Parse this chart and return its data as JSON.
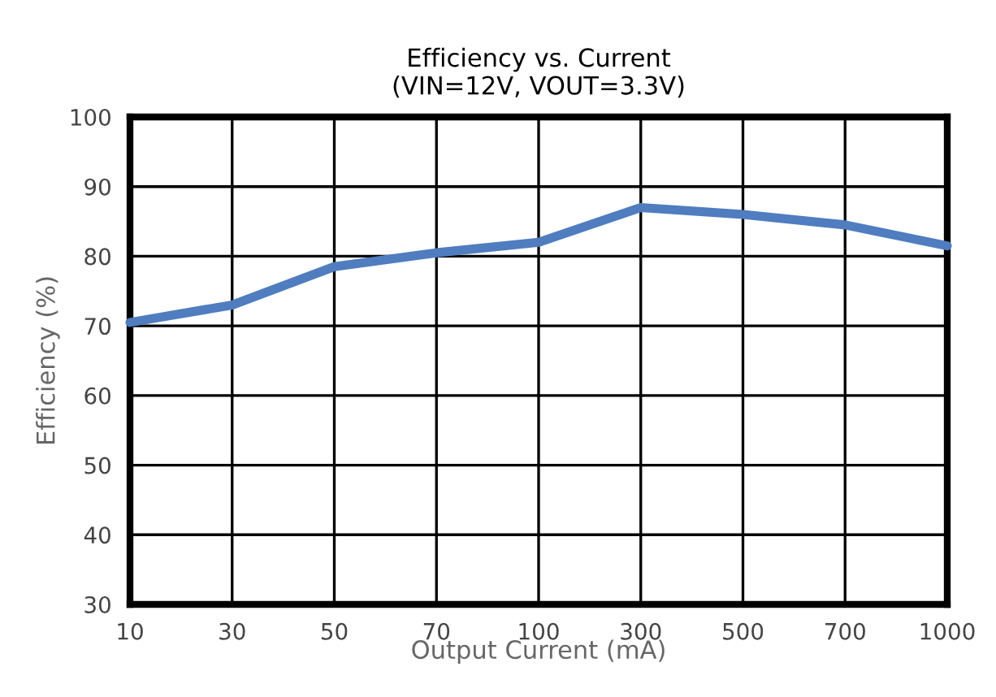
{
  "chart_data": {
    "type": "line",
    "title": "Efficiency vs. Current\n(VIN=12V, VOUT=3.3V)",
    "xlabel": "Output Current (mA)",
    "ylabel": "Efficiency (%)",
    "categories": [
      "10",
      "30",
      "50",
      "70",
      "100",
      "300",
      "500",
      "700",
      "1000"
    ],
    "series": [
      {
        "color": "#4f7dbf",
        "values": [
          70.5,
          73,
          78.5,
          80.5,
          82,
          87,
          86,
          84.5,
          81.5
        ]
      }
    ],
    "ylim": [
      30,
      100
    ],
    "yticks": [
      30,
      40,
      50,
      60,
      70,
      80,
      90,
      100
    ],
    "grid": true,
    "marker": "none",
    "line_style": "solid"
  }
}
